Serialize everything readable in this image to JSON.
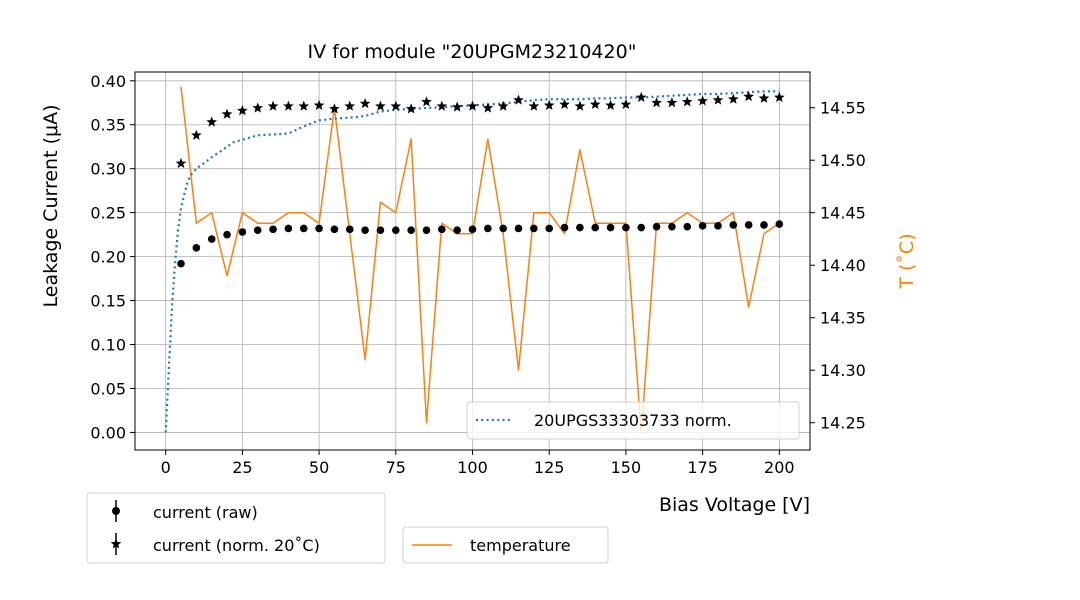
{
  "chart_data": {
    "type": "scatter",
    "title": "IV for module \"20UPGM23210420\"",
    "xlabel": "Bias Voltage [V]",
    "ylabel": "Leakage Current (μA)",
    "y2label": "T ($^\\circ$C)",
    "y2label_display": "T (˚C)",
    "xlim": [
      -10,
      210
    ],
    "ylim": [
      -0.02,
      0.41
    ],
    "y2lim": [
      14.224,
      14.584
    ],
    "x_ticks": [
      0,
      25,
      50,
      75,
      100,
      125,
      150,
      175,
      200
    ],
    "x_tick_labels": [
      "0",
      "25",
      "50",
      "75",
      "100",
      "125",
      "150",
      "175",
      "200"
    ],
    "y_ticks": [
      0.0,
      0.05,
      0.1,
      0.15,
      0.2,
      0.25,
      0.3,
      0.35,
      0.4
    ],
    "y_tick_labels": [
      "0.00",
      "0.05",
      "0.10",
      "0.15",
      "0.20",
      "0.25",
      "0.30",
      "0.35",
      "0.40"
    ],
    "y2_ticks": [
      14.25,
      14.3,
      14.35,
      14.4,
      14.45,
      14.5,
      14.55
    ],
    "y2_tick_labels": [
      "14.25",
      "14.30",
      "14.35",
      "14.40",
      "14.45",
      "14.50",
      "14.55"
    ],
    "grid": true,
    "colors": {
      "raw": "#000000",
      "norm": "#000000",
      "reference": "#1f77b4",
      "temperature": "#ff7f0e",
      "grid": "#b0b0b0"
    },
    "series": [
      {
        "name": "current (raw)",
        "marker": "circle",
        "axis": "left",
        "x": [
          5,
          10,
          15,
          20,
          25,
          30,
          35,
          40,
          45,
          50,
          55,
          60,
          65,
          70,
          75,
          80,
          85,
          90,
          95,
          100,
          105,
          110,
          115,
          120,
          125,
          130,
          135,
          140,
          145,
          150,
          155,
          160,
          165,
          170,
          175,
          180,
          185,
          190,
          195,
          200
        ],
        "y": [
          0.192,
          0.21,
          0.22,
          0.225,
          0.228,
          0.23,
          0.231,
          0.232,
          0.232,
          0.232,
          0.231,
          0.231,
          0.23,
          0.23,
          0.23,
          0.23,
          0.23,
          0.231,
          0.23,
          0.231,
          0.232,
          0.232,
          0.232,
          0.232,
          0.232,
          0.233,
          0.233,
          0.233,
          0.233,
          0.233,
          0.233,
          0.234,
          0.234,
          0.234,
          0.235,
          0.235,
          0.236,
          0.236,
          0.236,
          0.237
        ]
      },
      {
        "name": "current (norm. 20˚C)",
        "marker": "star",
        "axis": "left",
        "x": [
          5,
          10,
          15,
          20,
          25,
          30,
          35,
          40,
          45,
          50,
          55,
          60,
          65,
          70,
          75,
          80,
          85,
          90,
          95,
          100,
          105,
          110,
          115,
          120,
          125,
          130,
          135,
          140,
          145,
          150,
          155,
          160,
          165,
          170,
          175,
          180,
          185,
          190,
          195,
          200
        ],
        "y": [
          0.306,
          0.338,
          0.353,
          0.362,
          0.366,
          0.369,
          0.371,
          0.371,
          0.371,
          0.372,
          0.368,
          0.371,
          0.374,
          0.371,
          0.371,
          0.368,
          0.376,
          0.371,
          0.37,
          0.371,
          0.369,
          0.371,
          0.378,
          0.371,
          0.372,
          0.373,
          0.371,
          0.373,
          0.372,
          0.373,
          0.381,
          0.375,
          0.375,
          0.376,
          0.377,
          0.378,
          0.379,
          0.382,
          0.38,
          0.381
        ]
      },
      {
        "name": "20UPGS33303733 norm.",
        "style": "dotted",
        "axis": "left",
        "x": [
          0,
          1,
          2,
          3,
          4,
          5,
          6,
          7,
          8,
          10,
          12,
          15,
          18,
          20,
          22,
          25,
          28,
          30,
          35,
          40,
          45,
          50,
          55,
          60,
          65,
          70,
          75,
          80,
          85,
          90,
          95,
          100,
          105,
          110,
          115,
          120,
          125,
          130,
          135,
          140,
          145,
          150,
          155,
          160,
          165,
          170,
          175,
          180,
          185,
          190,
          195,
          200
        ],
        "y": [
          0.0,
          0.07,
          0.14,
          0.19,
          0.23,
          0.255,
          0.27,
          0.283,
          0.292,
          0.3,
          0.305,
          0.313,
          0.32,
          0.325,
          0.33,
          0.333,
          0.336,
          0.338,
          0.339,
          0.34,
          0.348,
          0.355,
          0.357,
          0.358,
          0.36,
          0.365,
          0.367,
          0.368,
          0.369,
          0.37,
          0.371,
          0.372,
          0.373,
          0.374,
          0.376,
          0.378,
          0.379,
          0.379,
          0.379,
          0.38,
          0.38,
          0.381,
          0.381,
          0.382,
          0.383,
          0.384,
          0.385,
          0.385,
          0.386,
          0.387,
          0.388,
          0.388
        ]
      },
      {
        "name": "temperature",
        "style": "line",
        "axis": "right",
        "x": [
          5,
          10,
          15,
          20,
          25,
          30,
          35,
          40,
          45,
          50,
          55,
          60,
          65,
          70,
          75,
          80,
          85,
          90,
          95,
          100,
          105,
          110,
          115,
          120,
          125,
          130,
          135,
          140,
          145,
          150,
          155,
          160,
          165,
          170,
          175,
          180,
          185,
          190,
          195,
          200
        ],
        "y": [
          14.57,
          14.44,
          14.45,
          14.39,
          14.45,
          14.44,
          14.44,
          14.45,
          14.45,
          14.44,
          14.55,
          14.43,
          14.31,
          14.46,
          14.45,
          14.52,
          14.25,
          14.44,
          14.43,
          14.43,
          14.52,
          14.43,
          14.3,
          14.45,
          14.45,
          14.43,
          14.51,
          14.44,
          14.44,
          14.44,
          14.24,
          14.44,
          14.44,
          14.45,
          14.44,
          14.44,
          14.45,
          14.36,
          14.43,
          14.44
        ]
      }
    ],
    "legends": [
      {
        "placement": "inside-bottom-right",
        "entries": [
          "20UPGS33303733 norm."
        ]
      },
      {
        "placement": "below-left",
        "entries": [
          "current (raw)",
          "current (norm. 20˚C)"
        ]
      },
      {
        "placement": "below-center",
        "entries": [
          "temperature"
        ]
      }
    ]
  }
}
